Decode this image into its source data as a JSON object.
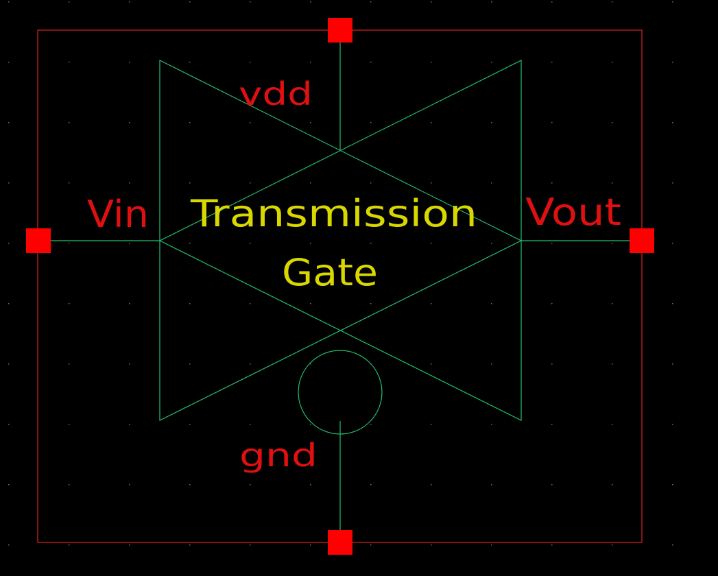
{
  "schematic": {
    "title_line1": "Transmission",
    "title_line2": "Gate",
    "pins": {
      "vdd": "vdd",
      "gnd": "gnd",
      "vin": "Vin",
      "vout": "Vout"
    },
    "colors": {
      "background": "#000000",
      "grid_dot": "#6f6f6f",
      "boundary": "#e02020",
      "pin_square": "#ff0000",
      "pin_label": "#e01010",
      "wire": "#22c070",
      "title_text": "#d8d800"
    }
  }
}
